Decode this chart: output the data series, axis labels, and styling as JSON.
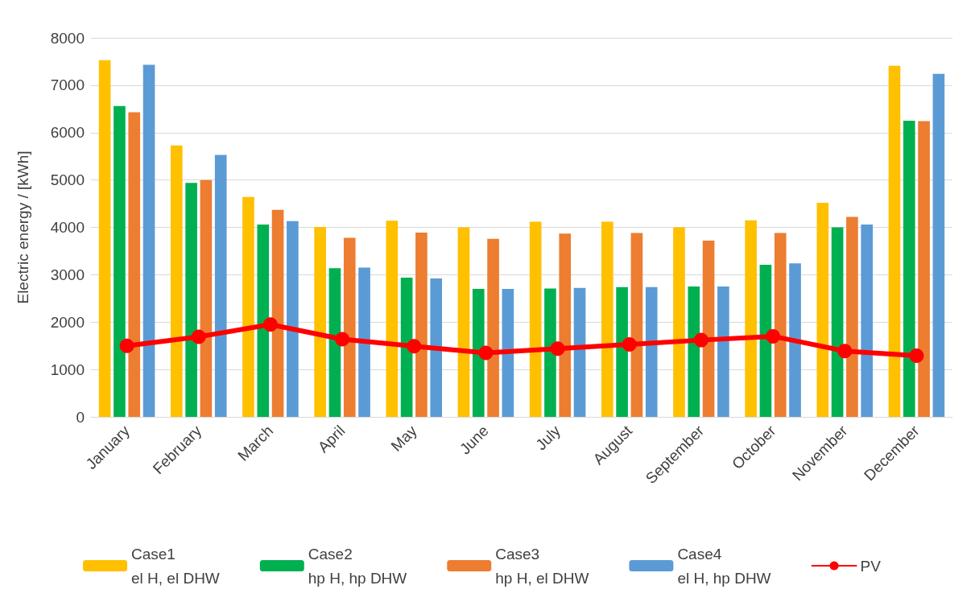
{
  "chart_data": {
    "type": "bar",
    "ylabel": "Electric energy / [kWh]",
    "categories": [
      "January",
      "February",
      "March",
      "April",
      "May",
      "June",
      "July",
      "August",
      "September",
      "October",
      "November",
      "December"
    ],
    "series": [
      {
        "name": "Case1\nel H, el DHW",
        "color": "#ffc000",
        "values": [
          7530,
          5730,
          4640,
          4010,
          4140,
          4000,
          4120,
          4120,
          4000,
          4150,
          4520,
          7410
        ]
      },
      {
        "name": "Case2\nhp H, hp DHW",
        "color": "#00b050",
        "values": [
          6560,
          4940,
          4060,
          3140,
          2940,
          2700,
          2710,
          2740,
          2750,
          3210,
          4000,
          6250
        ]
      },
      {
        "name": "Case3\nhp H, el DHW",
        "color": "#ed7d31",
        "values": [
          6430,
          5000,
          4370,
          3780,
          3890,
          3760,
          3870,
          3880,
          3720,
          3880,
          4220,
          6240
        ]
      },
      {
        "name": "Case4\nel H, hp DHW",
        "color": "#5b9bd5",
        "values": [
          7430,
          5530,
          4130,
          3150,
          2920,
          2700,
          2720,
          2740,
          2750,
          3240,
          4060,
          7240
        ]
      },
      {
        "name": "PV",
        "type": "line",
        "color": "#ff0000",
        "marker": "circle",
        "line_style": "solid",
        "values": [
          1500,
          1690,
          1950,
          1640,
          1490,
          1350,
          1440,
          1530,
          1620,
          1700,
          1390,
          1290
        ]
      }
    ],
    "ylim": [
      0,
      8000
    ],
    "yticks": [
      0,
      1000,
      2000,
      3000,
      4000,
      5000,
      6000,
      7000,
      8000
    ],
    "grid": "y",
    "legend": "bottom"
  }
}
